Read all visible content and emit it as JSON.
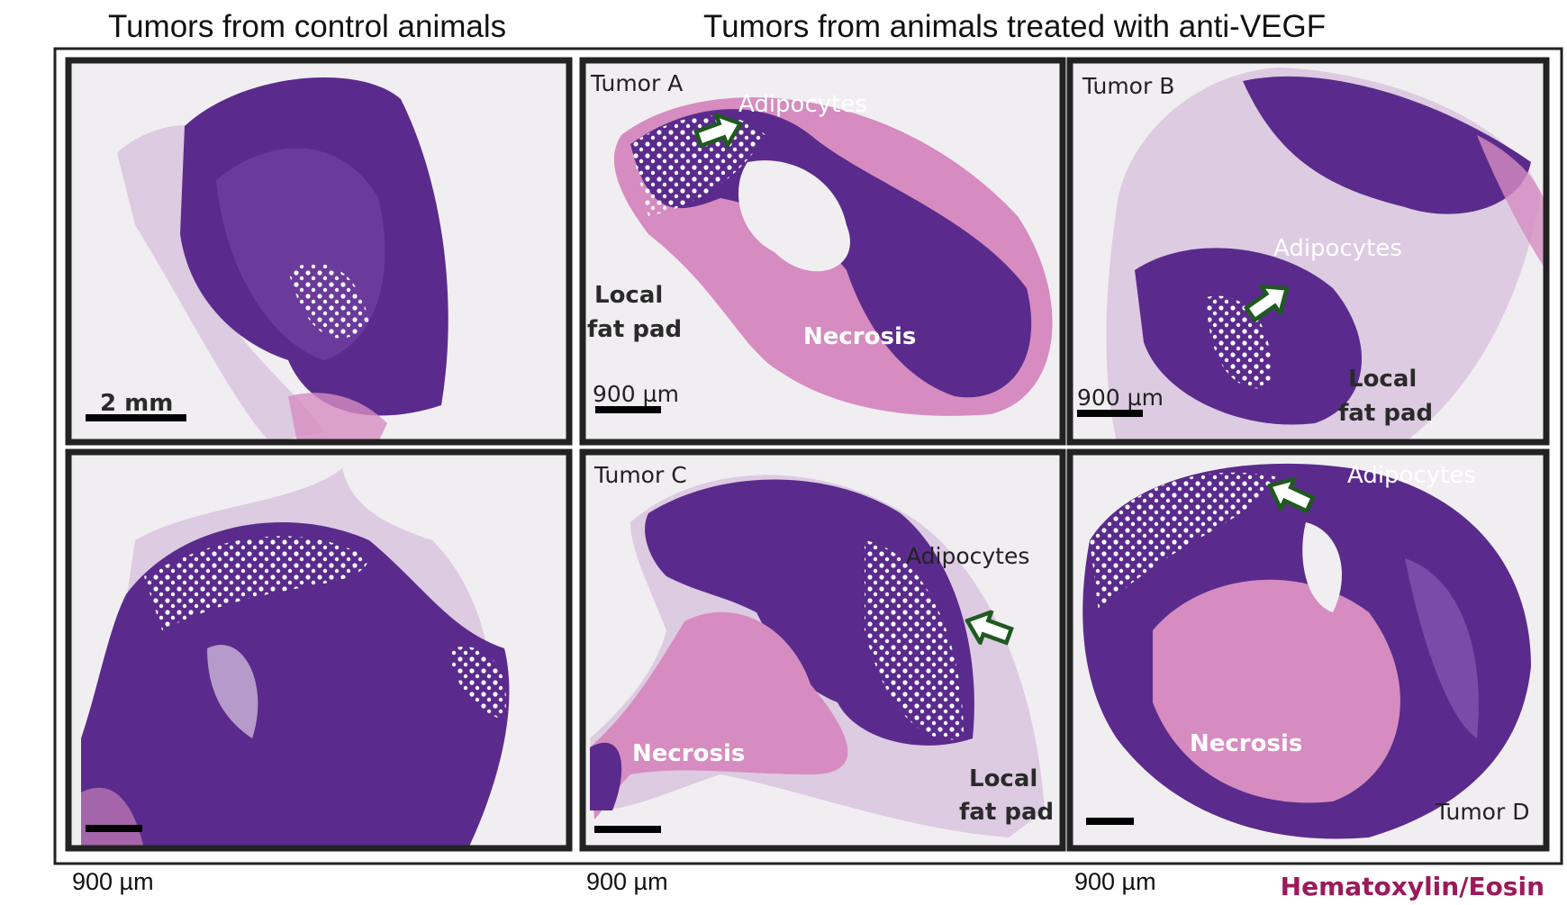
{
  "header": {
    "left_title": "Tumors from control animals",
    "right_title": "Tumors from animals treated with anti-VEGF"
  },
  "panels": {
    "control_top": {
      "scale_label": "2 mm"
    },
    "tumor_a": {
      "title": "Tumor A",
      "adipocytes": "Adipocytes",
      "local": "Local",
      "fat_pad": "fat pad",
      "necrosis": "Necrosis",
      "scale_label": "900 µm"
    },
    "tumor_b": {
      "title": "Tumor B",
      "adipocytes": "Adipocytes",
      "local": "Local",
      "fat_pad": "fat pad",
      "scale_label": "900 µm"
    },
    "tumor_c": {
      "title": "Tumor C",
      "adipocytes": "Adipocytes",
      "local": "Local",
      "fat_pad": "fat pad",
      "necrosis": "Necrosis"
    },
    "tumor_d": {
      "title": "Tumor D",
      "adipocytes": "Adipocytes",
      "necrosis": "Necrosis"
    }
  },
  "footer": {
    "scale_labels": [
      "900 µm",
      "900 µm",
      "900 µm"
    ],
    "stain": "Hematoxylin/Eosin"
  }
}
